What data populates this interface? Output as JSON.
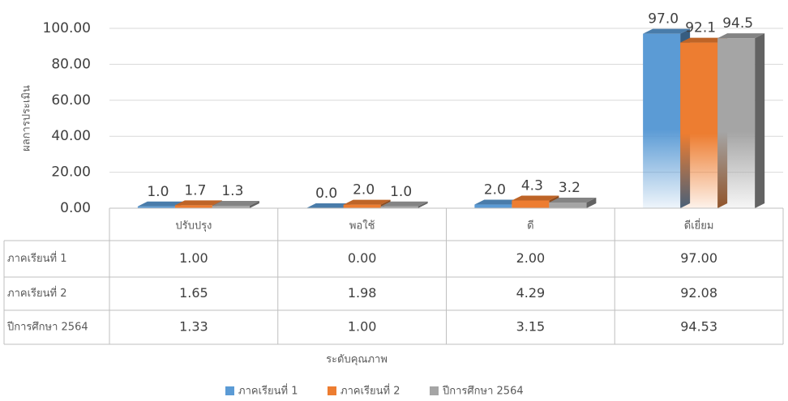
{
  "chart_data": {
    "type": "bar3d",
    "y_axis_label": "ผลการประเมิน",
    "x_axis_label": "ระดับคุณภาพ",
    "categories": [
      "ปรับปรุง",
      "พอใช้",
      "ดี",
      "ดีเยี่ยม"
    ],
    "series": [
      {
        "name": "ภาคเรียนที่ 1",
        "color": "#5b9bd5",
        "values": [
          1.0,
          0.0,
          2.0,
          97.0
        ],
        "value_labels": [
          "1.0",
          "0.0",
          "2.0",
          "97.0"
        ],
        "table_labels": [
          "1.00",
          "0.00",
          "2.00",
          "97.00"
        ]
      },
      {
        "name": "ภาคเรียนที่ 2",
        "color": "#ed7d31",
        "values": [
          1.65,
          1.98,
          4.29,
          92.08
        ],
        "value_labels": [
          "1.7",
          "2.0",
          "4.3",
          "92.1"
        ],
        "table_labels": [
          "1.65",
          "1.98",
          "4.29",
          "92.08"
        ]
      },
      {
        "name": "ปีการศึกษา 2564",
        "color": "#a5a5a5",
        "values": [
          1.33,
          1.0,
          3.15,
          94.53
        ],
        "value_labels": [
          "1.3",
          "1.0",
          "3.2",
          "94.5"
        ],
        "table_labels": [
          "1.33",
          "1.00",
          "3.15",
          "94.53"
        ]
      }
    ],
    "ylim": [
      0,
      100
    ],
    "yticks": [
      {
        "value": 0,
        "label": "0.00"
      },
      {
        "value": 20,
        "label": "20.00"
      },
      {
        "value": 40,
        "label": "40.00"
      },
      {
        "value": 60,
        "label": "60.00"
      },
      {
        "value": 80,
        "label": "80.00"
      },
      {
        "value": 100,
        "label": "100.00"
      }
    ],
    "grid": true,
    "legend": "bottom"
  }
}
